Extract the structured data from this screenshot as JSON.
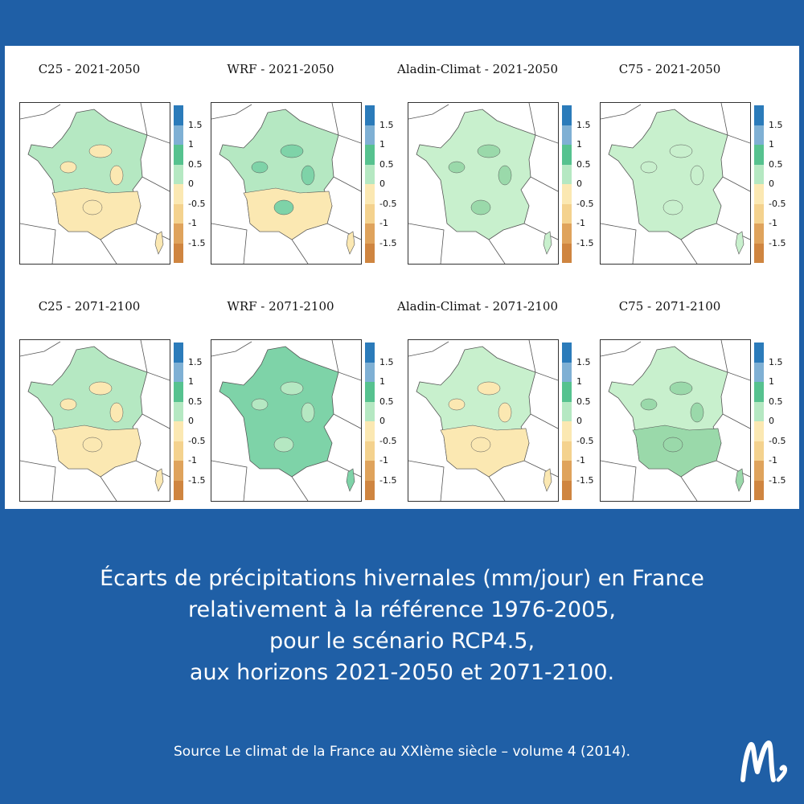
{
  "colors": {
    "background": "#1f5fa6",
    "panel": "#ffffff",
    "text_white": "#ffffff",
    "legend": [
      "#2b7bba",
      "#7fb0d4",
      "#56c28f",
      "#b5e8c2",
      "#fbe8b2",
      "#f4d28e",
      "#dfa35c",
      "#cf8540"
    ]
  },
  "legend": {
    "ticks": [
      "1.5",
      "1",
      "0.5",
      "0",
      "-0.5",
      "-1",
      "-1.5"
    ]
  },
  "maps": [
    {
      "title": "C25 - 2021-2050",
      "fill": "#b5e8c2",
      "south_fill": "#fbe8b2",
      "south": true,
      "patches": "#fbe8b2"
    },
    {
      "title": "WRF - 2021-2050",
      "fill": "#b5e8c2",
      "south_fill": "#fbe8b2",
      "south": false,
      "patches": "#7ed3a8"
    },
    {
      "title": "Aladin-Climat - 2021-2050",
      "fill": "#c8f0cd",
      "south_fill": "#c8f0cd",
      "south": false,
      "patches": "#9ad9aa"
    },
    {
      "title": "C75 - 2021-2050",
      "fill": "#c8f0cd",
      "south_fill": "#c8f0cd",
      "south": false,
      "patches": "#c8f0cd"
    },
    {
      "title": "C25 - 2071-2100",
      "fill": "#b5e8c2",
      "south_fill": "#fbe8b2",
      "south": true,
      "patches": "#fbe8b2"
    },
    {
      "title": "WRF - 2071-2100",
      "fill": "#7ed3a8",
      "south_fill": "#7ed3a8",
      "south": false,
      "patches": "#b5e8c2"
    },
    {
      "title": "Aladin-Climat - 2071-2100",
      "fill": "#c8f0cd",
      "south_fill": "#fbe8b2",
      "south": false,
      "patches": "#fbe8b2"
    },
    {
      "title": "C75 - 2071-2100",
      "fill": "#c8f0cd",
      "south_fill": "#9ad9aa",
      "south": false,
      "patches": "#9ad9aa"
    }
  ],
  "caption": {
    "line1": "Écarts de précipitations hivernales (mm/jour) en France",
    "line2": "relativement à la référence 1976-2005,",
    "line3": "pour le scénario RCP4.5,",
    "line4": "aux horizons 2021-2050 et 2071-2100."
  },
  "source": "Source Le climat de la France au XXIème siècle – volume 4 (2014).",
  "logo_text": "M,"
}
